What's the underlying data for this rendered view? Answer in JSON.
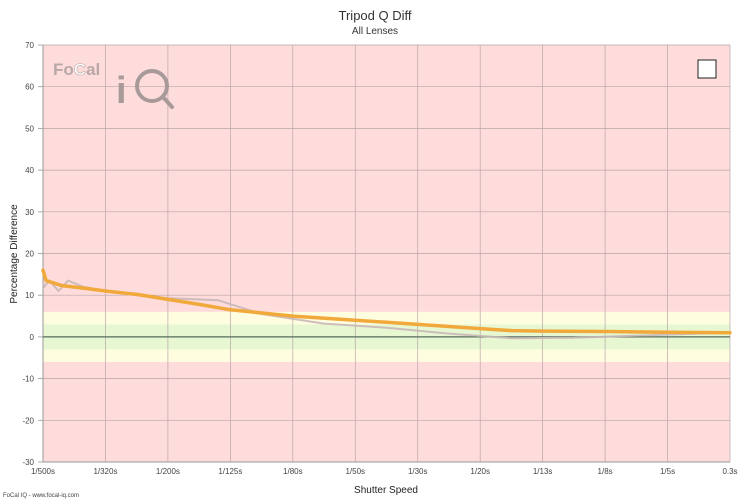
{
  "chart_data": {
    "type": "line",
    "title": "Tripod Q Diff",
    "subtitle": "All Lenses",
    "xlabel": "Shutter Speed",
    "ylabel": "Percentage Difference",
    "categories": [
      "1/500s",
      "1/320s",
      "1/200s",
      "1/125s",
      "1/80s",
      "1/50s",
      "1/30s",
      "1/20s",
      "1/13s",
      "1/8s",
      "1/5s",
      "0.3s"
    ],
    "ylim": [
      -30,
      70
    ],
    "yticks": [
      -30,
      -20,
      -10,
      0,
      10,
      20,
      30,
      40,
      50,
      60,
      70
    ],
    "grid": true,
    "bands": [
      {
        "from": -6,
        "to": 6,
        "color": "#fffde0"
      },
      {
        "from": -3,
        "to": 3,
        "color": "#e6f7d2"
      }
    ],
    "background_color": "#ffdcdc",
    "zero_line_color": "#556b5a",
    "series": [
      {
        "color": "#c9b8b8",
        "x": [
          0,
          0.02,
          0.1,
          0.25,
          0.4,
          0.65,
          1,
          1.5,
          2,
          2.8,
          3.5,
          4.5,
          5.5,
          6.5,
          7.5,
          8.5,
          9.5,
          10.5,
          11
        ],
        "y": [
          13,
          12,
          13.5,
          11,
          13.5,
          12,
          11,
          10,
          9.3,
          8.8,
          5.5,
          3.2,
          2.2,
          0.8,
          -0.3,
          -0.2,
          0.3,
          0.8,
          0.9
        ]
      },
      {
        "color": "#f0a93a",
        "x": [
          0,
          0.02,
          0.05,
          0.3,
          0.7,
          1,
          1.5,
          2,
          2.5,
          3,
          4,
          5,
          6,
          7,
          7.5,
          8,
          9,
          10,
          11
        ],
        "y": [
          16,
          15,
          13.5,
          12.3,
          11.6,
          11,
          10.2,
          9,
          7.8,
          6.5,
          5,
          4,
          3,
          2,
          1.5,
          1.4,
          1.3,
          1.1,
          1
        ]
      }
    ]
  },
  "logo": {
    "text_left": "Fo",
    "text_c": "C",
    "text_right": "al",
    "big_i": "i"
  },
  "legend_checkbox_checked": false,
  "credit": "FoCal IQ - www.focal-iq.com"
}
